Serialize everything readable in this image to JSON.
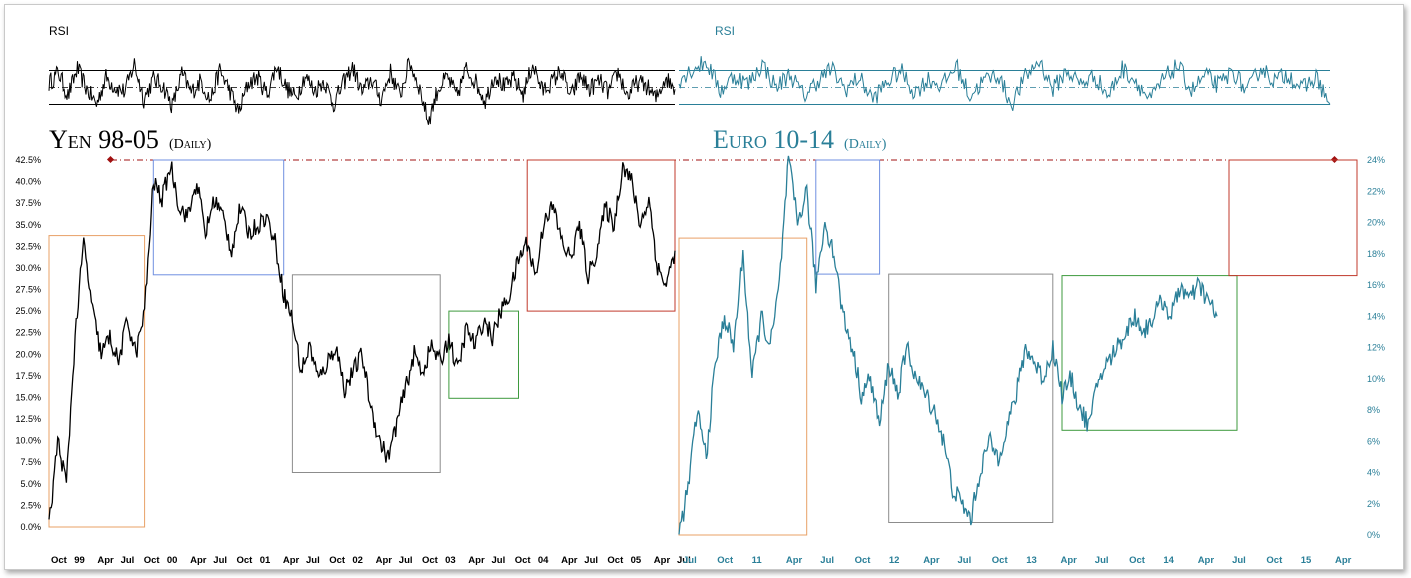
{
  "colors": {
    "yen": "#000000",
    "euro": "#2a7f98",
    "orange": "#e8a066",
    "blue": "#6f8fe0",
    "gray": "#8c8c8c",
    "green": "#3e9a3e",
    "red": "#c0392b",
    "diamond": "#a01010"
  },
  "chart_data": [
    {
      "type": "line",
      "panel": "rsi",
      "label": "RSI",
      "series": [
        {
          "name": "",
          "color": "#000000",
          "values": [
            55,
            68,
            40,
            72,
            48,
            30,
            62,
            50,
            45,
            78,
            36,
            60,
            52,
            28,
            66,
            44,
            58,
            35,
            70,
            48,
            20,
            55,
            62,
            42,
            76,
            50,
            38,
            64,
            46,
            58,
            30,
            54,
            74,
            44,
            60,
            36,
            68,
            40,
            80,
            52,
            10,
            48,
            62,
            40,
            72,
            56,
            34,
            66,
            50,
            60,
            42,
            78,
            46,
            56,
            70,
            38,
            64,
            48,
            58,
            44,
            68,
            40,
            56,
            52,
            36,
            62,
            48
          ]
        },
        {
          "name": "",
          "color": "#2a7f98",
          "values": [
            60,
            72,
            80,
            46,
            64,
            54,
            78,
            50,
            66,
            40,
            58,
            72,
            48,
            62,
            36,
            56,
            70,
            44,
            60,
            52,
            76,
            40,
            58,
            66,
            30,
            62,
            82,
            48,
            70,
            54,
            64,
            40,
            72,
            58,
            34,
            60,
            76,
            46,
            64,
            52,
            70,
            44,
            74,
            58,
            66,
            48,
            62,
            30
          ]
        }
      ]
    },
    {
      "type": "line",
      "panel": "main",
      "title_left": "Yen 98-05",
      "subtitle_left": "(Daily)",
      "title_right": "Euro 10-14",
      "subtitle_right": "(Daily)",
      "y_left": {
        "ticks": [
          "0.0%",
          "2.5%",
          "5.0%",
          "7.5%",
          "10.0%",
          "12.5%",
          "15.0%",
          "17.5%",
          "20.0%",
          "22.5%",
          "25.0%",
          "27.5%",
          "30.0%",
          "32.5%",
          "35.0%",
          "37.5%",
          "40.0%",
          "42.5%"
        ],
        "range": [
          0,
          42.5
        ]
      },
      "y_right": {
        "ticks": [
          "0%",
          "2%",
          "4%",
          "6%",
          "8%",
          "10%",
          "12%",
          "14%",
          "16%",
          "18%",
          "20%",
          "22%",
          "24%"
        ],
        "range": [
          0,
          24
        ]
      },
      "x_left_ticks": [
        "Oct",
        "99",
        "Apr",
        "Jul",
        "Oct",
        "00",
        "Apr",
        "Jul",
        "Oct",
        "01",
        "Apr",
        "Jul",
        "Oct",
        "02",
        "Apr",
        "Jul",
        "Oct",
        "03",
        "Apr",
        "Jul",
        "Oct",
        "04",
        "Apr",
        "Jul",
        "Oct",
        "05",
        "Apr",
        "Jul"
      ],
      "x_right_ticks": [
        "Jul",
        "Oct",
        "11",
        "Apr",
        "Jul",
        "Oct",
        "12",
        "Apr",
        "Jul",
        "Oct",
        "13",
        "Apr",
        "Jul",
        "Oct",
        "14",
        "Apr",
        "Jul",
        "Oct",
        "15",
        "Apr"
      ],
      "series": [
        {
          "name": "",
          "color": "#000000",
          "values": [
            0,
            10,
            5,
            22,
            33,
            25,
            20,
            22,
            19,
            24,
            20,
            25,
            40,
            38,
            42,
            37,
            36,
            40,
            34,
            38,
            36,
            32,
            37,
            34,
            35,
            36,
            33,
            27,
            24,
            18,
            21,
            17,
            19,
            21,
            16,
            18,
            20,
            14,
            10,
            8,
            12,
            16,
            20,
            18,
            21,
            19,
            22,
            18,
            23,
            21,
            24,
            22,
            25,
            27,
            31,
            33,
            29,
            36,
            37,
            33,
            31,
            35,
            29,
            32,
            37,
            35,
            42,
            40,
            35,
            38,
            30,
            28,
            32
          ]
        },
        {
          "name": "",
          "color": "#2a7f98",
          "values": [
            0,
            3,
            8,
            5,
            11,
            14,
            12,
            18,
            10,
            14,
            12,
            16,
            24,
            20,
            22,
            16,
            20,
            18,
            14,
            12,
            9,
            10,
            7,
            11,
            9,
            12,
            10,
            9,
            8,
            6,
            3,
            2,
            1,
            4,
            6,
            5,
            7,
            9,
            12,
            11,
            10,
            12,
            9,
            10,
            8,
            7,
            10,
            11,
            12,
            13,
            14,
            13,
            14,
            15,
            14,
            16,
            15,
            16,
            15,
            14
          ]
        }
      ],
      "boxes": [
        {
          "side": "left",
          "color": "orange",
          "from": 0,
          "to": 11,
          "lo": 0,
          "hi": 33.75
        },
        {
          "side": "left",
          "color": "blue",
          "from": 12,
          "to": 27,
          "lo": 29.2,
          "hi": 42.5
        },
        {
          "side": "left",
          "color": "gray",
          "from": 28,
          "to": 45,
          "lo": 6.3,
          "hi": 29.2
        },
        {
          "side": "left",
          "color": "green",
          "from": 46,
          "to": 54,
          "lo": 14.9,
          "hi": 25.0
        },
        {
          "side": "left",
          "color": "red",
          "from": 55,
          "to": 72,
          "lo": 25.0,
          "hi": 42.5
        },
        {
          "side": "right",
          "color": "orange",
          "from": 0,
          "to": 14,
          "lo": 0,
          "hi": 19
        },
        {
          "side": "right",
          "color": "blue",
          "from": 15,
          "to": 22,
          "lo": 16.7,
          "hi": 24
        },
        {
          "side": "right",
          "color": "gray",
          "from": 23,
          "to": 41,
          "lo": 0.8,
          "hi": 16.7
        },
        {
          "side": "right",
          "color": "green",
          "from": 42,
          "to": 59,
          "lo": 6.7,
          "hi": 16.6
        },
        {
          "side": "right",
          "color": "red",
          "from": 60,
          "to": 67,
          "lo": 16.6,
          "hi": 24
        }
      ],
      "reference_line": {
        "level_left": 42.5,
        "level_right": 24,
        "style": "dash-dot",
        "color": "diamond"
      }
    }
  ]
}
